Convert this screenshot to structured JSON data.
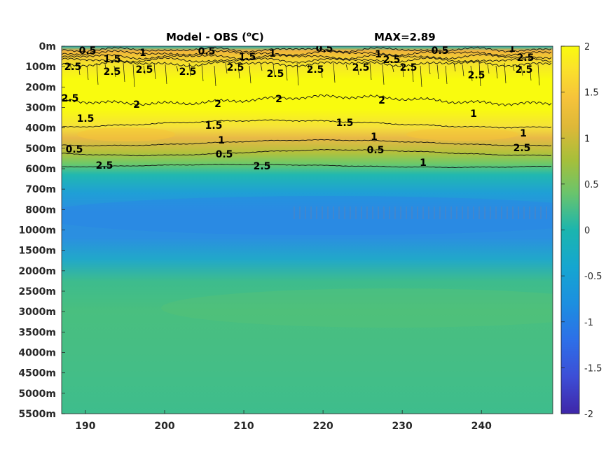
{
  "chart_data": {
    "type": "heatmap",
    "title": "Model - OBS (",
    "title_unit_sup": "o",
    "title_unit_tail": "C)",
    "max_label": "MAX=2.89",
    "x_ticks": [
      "190",
      "200",
      "210",
      "220",
      "230",
      "240"
    ],
    "x_tick_values": [
      190,
      200,
      210,
      220,
      230,
      240
    ],
    "xlim": [
      187,
      249
    ],
    "y_ticks": [
      "0m",
      "100m",
      "200m",
      "300m",
      "400m",
      "500m",
      "600m",
      "700m",
      "800m",
      "1000m",
      "1500m",
      "2000m",
      "2500m",
      "3000m",
      "3500m",
      "4000m",
      "4500m",
      "5000m",
      "5500m"
    ],
    "colorbar": {
      "ticks": [
        "2",
        "1.5",
        "1",
        "0.5",
        "0",
        "-0.5",
        "-1",
        "-1.5",
        "-2"
      ],
      "tick_values": [
        2,
        1.5,
        1,
        0.5,
        0,
        -0.5,
        -1,
        -1.5,
        -2
      ],
      "range": [
        -2,
        2
      ],
      "colormap": "parula"
    },
    "profile_by_depth": [
      {
        "depth": "0m",
        "value": 0.0
      },
      {
        "depth": "100m",
        "value": 2.3
      },
      {
        "depth": "200m",
        "value": 2.5
      },
      {
        "depth": "300m",
        "value": 2.3
      },
      {
        "depth": "400m",
        "value": 1.8
      },
      {
        "depth": "500m",
        "value": 1.2
      },
      {
        "depth": "600m",
        "value": 0.4
      },
      {
        "depth": "700m",
        "value": -0.3
      },
      {
        "depth": "800m",
        "value": -0.6
      },
      {
        "depth": "1000m",
        "value": -0.6
      },
      {
        "depth": "1500m",
        "value": -0.3
      },
      {
        "depth": "2000m",
        "value": 0.2
      },
      {
        "depth": "2500m",
        "value": 0.3
      },
      {
        "depth": "3000m",
        "value": 0.3
      },
      {
        "depth": "3500m",
        "value": 0.25
      },
      {
        "depth": "4000m",
        "value": 0.2
      },
      {
        "depth": "4500m",
        "value": 0.2
      },
      {
        "depth": "5000m",
        "value": 0.15
      },
      {
        "depth": "5500m",
        "value": 0.1
      }
    ],
    "contour_levels": [
      "0.5",
      "1",
      "1.5",
      "2",
      "2.5"
    ],
    "contour_labels_visible": [
      "0.5",
      "1.5",
      "1",
      "0.5",
      "1.5",
      "1",
      "0.5",
      "1",
      "2.5",
      "0.5",
      "1",
      "2.5",
      "2.5",
      "2.5",
      "2.5",
      "2.5",
      "2.5",
      "2.5",
      "2.5",
      "2.5",
      "2.5",
      "2.5",
      "2.5",
      "2.5",
      "2",
      "2",
      "2",
      "2",
      "1.5",
      "1.5",
      "1.5",
      "1",
      "1",
      "1",
      "1",
      "0.5",
      "0.5",
      "0.5"
    ]
  }
}
